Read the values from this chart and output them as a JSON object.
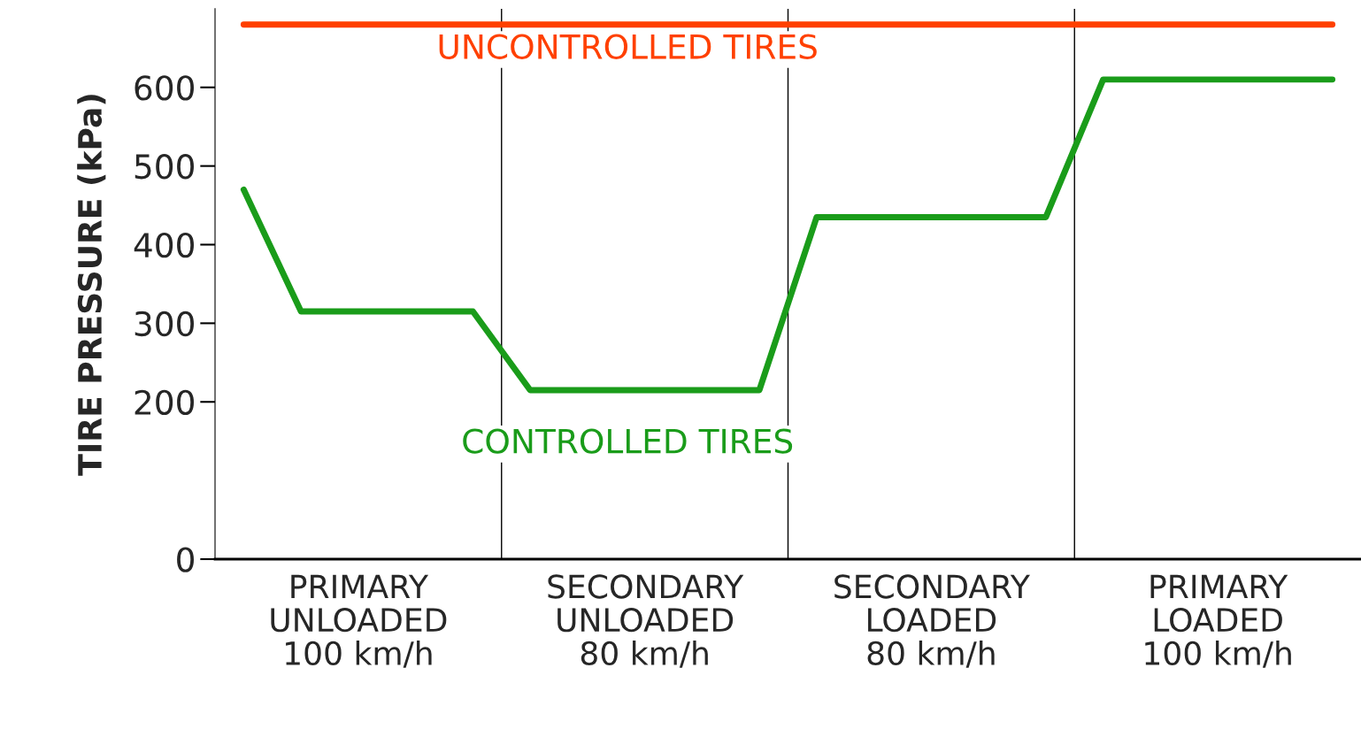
{
  "chart_data": {
    "type": "line",
    "ylabel": "TIRE PRESSURE (kPa)",
    "categories": [
      null,
      null,
      "PRIMARY\nUNLOADED\n100 km/h",
      null,
      null,
      null,
      null,
      "SECONDARY\nUNLOADED\n80 km/h",
      null,
      null,
      null,
      null,
      "SECONDARY\nLOADED\n80 km/h",
      null,
      null,
      null,
      null,
      "PRIMARY\nLOADED\n100 km/h",
      null,
      null
    ],
    "ylim": [
      0,
      700
    ],
    "yticks": [
      0,
      200,
      300,
      400,
      500,
      600
    ],
    "series": [
      {
        "name": "UNCONTROLLED TIRES",
        "color": "#ff4000",
        "values": [
          680,
          680,
          680,
          680,
          680,
          680,
          680,
          680,
          680,
          680,
          680,
          680,
          680,
          680,
          680,
          680,
          680,
          680,
          680,
          680
        ]
      },
      {
        "name": "CONTROLLED TIRES",
        "color": "#1a9c1a",
        "values": [
          470,
          315,
          315,
          315,
          315,
          215,
          215,
          215,
          215,
          215,
          435,
          435,
          435,
          435,
          435,
          610,
          610,
          610,
          610,
          610
        ]
      }
    ],
    "grid": false,
    "legend": false,
    "line_style": "solid",
    "marker": "none"
  }
}
